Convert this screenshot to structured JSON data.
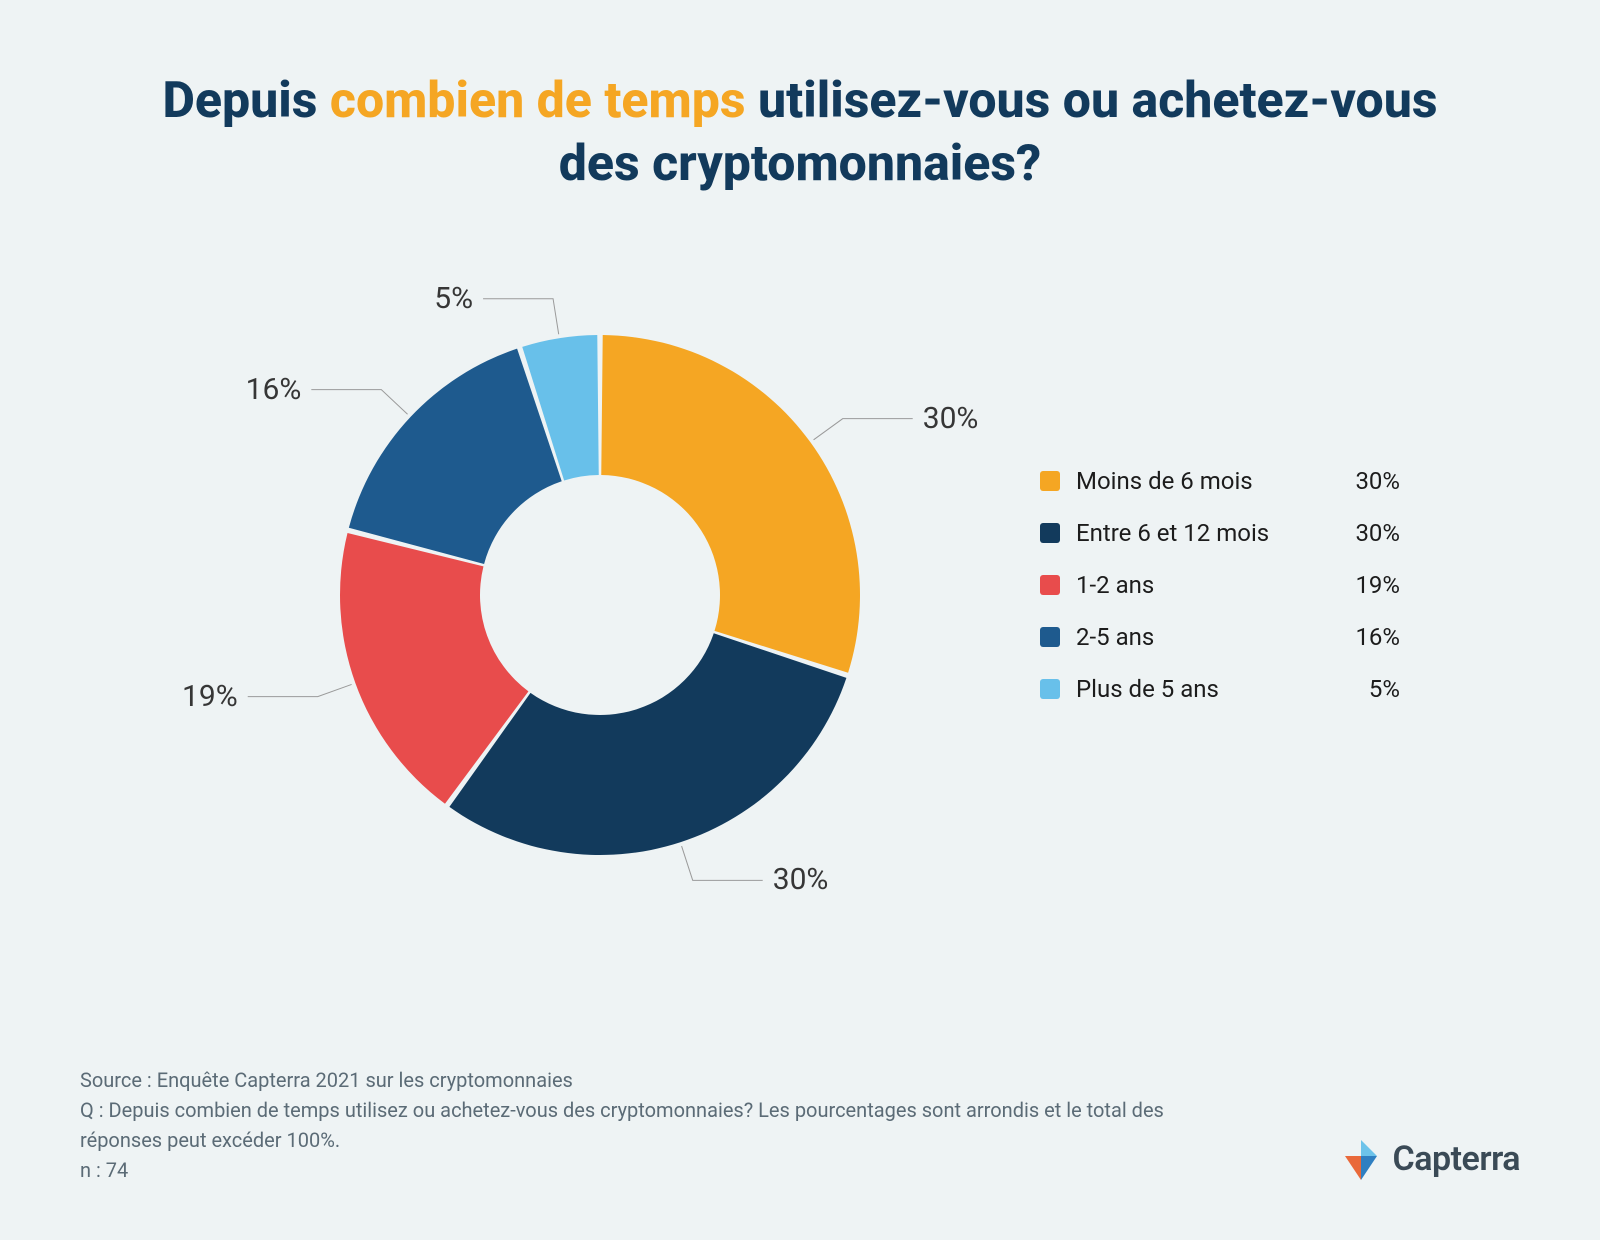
{
  "title": {
    "pre": "Depuis ",
    "em": "combien de temps",
    "post": " utilisez-vous ou achetez-vous des cryptomonnaies?",
    "color_main": "#123a5c",
    "color_em": "#f5a623",
    "fontsize": 50,
    "fontweight": 800
  },
  "chart": {
    "type": "donut",
    "background_color": "#eef3f4",
    "slice_gap_color": "#eef3f4",
    "outer_radius": 260,
    "inner_radius": 120,
    "start_angle_deg": -90,
    "direction": "clockwise",
    "label_fontsize": 30,
    "label_color": "#363636",
    "leader_line_color": "#9a9a9a",
    "leader_line_width": 1,
    "slices": [
      {
        "label": "Moins de 6 mois",
        "value": 30,
        "display": "30%",
        "color": "#f5a623"
      },
      {
        "label": "Entre 6 et 12 mois",
        "value": 30,
        "display": "30%",
        "color": "#123a5c"
      },
      {
        "label": "1-2 ans",
        "value": 19,
        "display": "19%",
        "color": "#e84c4c"
      },
      {
        "label": "2-5 ans",
        "value": 16,
        "display": "16%",
        "color": "#1e5a8e"
      },
      {
        "label": "Plus de 5 ans",
        "value": 5,
        "display": "5%",
        "color": "#68c0ea"
      }
    ]
  },
  "legend": {
    "fontsize": 24,
    "text_color": "#1c1c1c",
    "swatch_size": 20,
    "swatch_radius": 3,
    "items": [
      {
        "label": "Moins de 6 mois",
        "pct": "30%",
        "color": "#f5a623"
      },
      {
        "label": "Entre 6 et 12 mois",
        "pct": "30%",
        "color": "#123a5c"
      },
      {
        "label": "1-2 ans",
        "pct": "19%",
        "color": "#e84c4c"
      },
      {
        "label": "2-5 ans",
        "pct": "16%",
        "color": "#1e5a8e"
      },
      {
        "label": "Plus de 5 ans",
        "pct": "5%",
        "color": "#68c0ea"
      }
    ]
  },
  "footer": {
    "line1": "Source : Enquête Capterra 2021 sur les cryptomonnaies",
    "line2": "Q : Depuis combien de temps utilisez ou achetez-vous des cryptomonnaies? Les pourcentages sont arrondis et le total des réponses peut excéder 100%.",
    "line3": "n : 74",
    "color": "#5b6b76",
    "fontsize": 20
  },
  "brand": {
    "name": "Capterra",
    "name_color": "#3a4a56",
    "icon_colors": {
      "left": "#e9693a",
      "right": "#2f7fc1",
      "top": "#6cc3ea"
    }
  }
}
